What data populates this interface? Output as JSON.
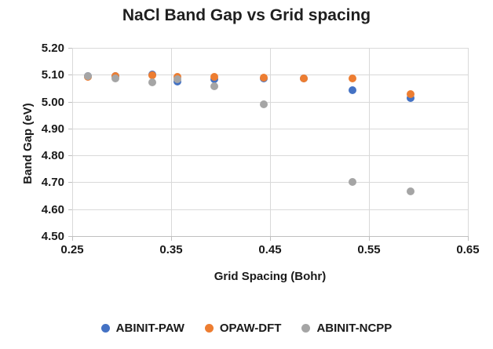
{
  "title": "NaCl Band Gap vs Grid spacing",
  "chart_data": {
    "type": "scatter",
    "title": "NaCl Band Gap vs Grid spacing",
    "xlabel": "Grid Spacing (Bohr)",
    "ylabel": "Band Gap (eV)",
    "xlim": [
      0.25,
      0.65
    ],
    "ylim": [
      4.5,
      5.2
    ],
    "x_ticks": [
      "0.25",
      "0.35",
      "0.45",
      "0.55",
      "0.65"
    ],
    "y_ticks": [
      "5.20",
      "5.10",
      "5.00",
      "4.90",
      "4.80",
      "4.70",
      "4.60",
      "4.50"
    ],
    "grid": true,
    "legend_position": "bottom",
    "colors": {
      "blue": "#4472C4",
      "orange": "#ED7D31",
      "gray": "#A5A5A5",
      "gridline": "#D9D9D9",
      "axis": "#BFBFBF"
    },
    "series": [
      {
        "name": "ABINIT-PAW",
        "color": "#4472C4",
        "points": [
          [
            0.266,
            5.095
          ],
          [
            0.294,
            5.096
          ],
          [
            0.331,
            5.1
          ],
          [
            0.356,
            5.076
          ],
          [
            0.394,
            5.083
          ],
          [
            0.444,
            5.087
          ],
          [
            0.484,
            5.086
          ],
          [
            0.533,
            5.042
          ],
          [
            0.592,
            5.013
          ]
        ]
      },
      {
        "name": "OPAW-DFT",
        "color": "#ED7D31",
        "points": [
          [
            0.266,
            5.092
          ],
          [
            0.294,
            5.094
          ],
          [
            0.331,
            5.098
          ],
          [
            0.356,
            5.091
          ],
          [
            0.394,
            5.093
          ],
          [
            0.444,
            5.09
          ],
          [
            0.484,
            5.086
          ],
          [
            0.533,
            5.085
          ],
          [
            0.592,
            5.027
          ]
        ]
      },
      {
        "name": "ABINIT-NCPP",
        "color": "#A5A5A5",
        "points": [
          [
            0.266,
            5.096
          ],
          [
            0.294,
            5.086
          ],
          [
            0.331,
            5.072
          ],
          [
            0.356,
            5.082
          ],
          [
            0.394,
            5.056
          ],
          [
            0.444,
            4.99
          ],
          [
            0.533,
            4.7
          ],
          [
            0.592,
            4.667
          ]
        ]
      }
    ]
  }
}
